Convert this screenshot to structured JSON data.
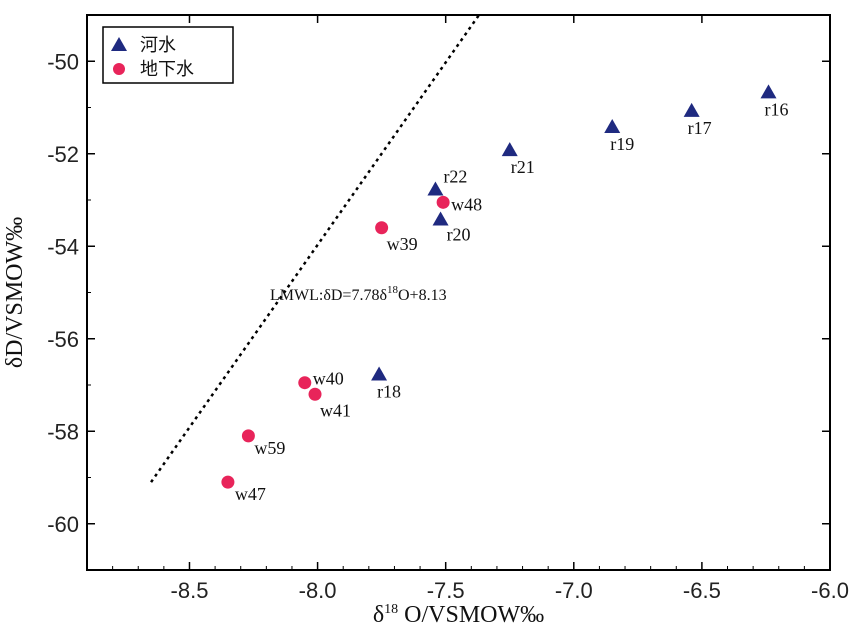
{
  "chart_data": {
    "type": "scatter",
    "xlabel_prefix": "δ",
    "xlabel_sup": "18",
    "xlabel_suffix": " O/VSMOW‰",
    "ylabel": "δD/VSMOW‰",
    "xlim": [
      -8.9,
      -6.0
    ],
    "ylim": [
      -61,
      -49
    ],
    "xticks": [
      -8.5,
      -8.0,
      -7.5,
      -7.0,
      -6.5,
      -6.0
    ],
    "xtick_labels": [
      "-8.5",
      "-8.0",
      "-7.5",
      "-7.0",
      "-6.5",
      "-6.0"
    ],
    "yticks": [
      -60,
      -58,
      -56,
      -54,
      -52,
      -50
    ],
    "ytick_labels": [
      "-60",
      "-58",
      "-56",
      "-54",
      "-52",
      "-50"
    ],
    "grid": false,
    "legend_position": "top-left",
    "series": [
      {
        "name": "河水",
        "marker": "triangle",
        "color": "#1f2a80",
        "points": [
          {
            "label": "r16",
            "x": -6.24,
            "y": -50.65
          },
          {
            "label": "r17",
            "x": -6.54,
            "y": -51.05
          },
          {
            "label": "r19",
            "x": -6.85,
            "y": -51.4
          },
          {
            "label": "r21",
            "x": -7.25,
            "y": -51.9
          },
          {
            "label": "r22",
            "x": -7.54,
            "y": -52.75
          },
          {
            "label": "r20",
            "x": -7.52,
            "y": -53.4
          },
          {
            "label": "r18",
            "x": -7.76,
            "y": -56.75
          }
        ]
      },
      {
        "name": "地下水",
        "marker": "circle",
        "color": "#e8245a",
        "points": [
          {
            "label": "w48",
            "x": -7.51,
            "y": -53.05
          },
          {
            "label": "w39",
            "x": -7.75,
            "y": -53.6
          },
          {
            "label": "w40",
            "x": -8.05,
            "y": -56.95
          },
          {
            "label": "w41",
            "x": -8.01,
            "y": -57.2
          },
          {
            "label": "w59",
            "x": -8.27,
            "y": -58.1
          },
          {
            "label": "w47",
            "x": -8.35,
            "y": -59.1
          }
        ]
      }
    ],
    "lmwl": {
      "label": "LMWL:δD=7.78δ18O+8.13",
      "label_pre": "LMWL:δD=7.78δ",
      "label_sup": "18",
      "label_post": "O+8.13",
      "slope": 7.78,
      "intercept": 8.13,
      "x_range": [
        -8.65,
        -7.37
      ],
      "style": "dotted"
    }
  }
}
